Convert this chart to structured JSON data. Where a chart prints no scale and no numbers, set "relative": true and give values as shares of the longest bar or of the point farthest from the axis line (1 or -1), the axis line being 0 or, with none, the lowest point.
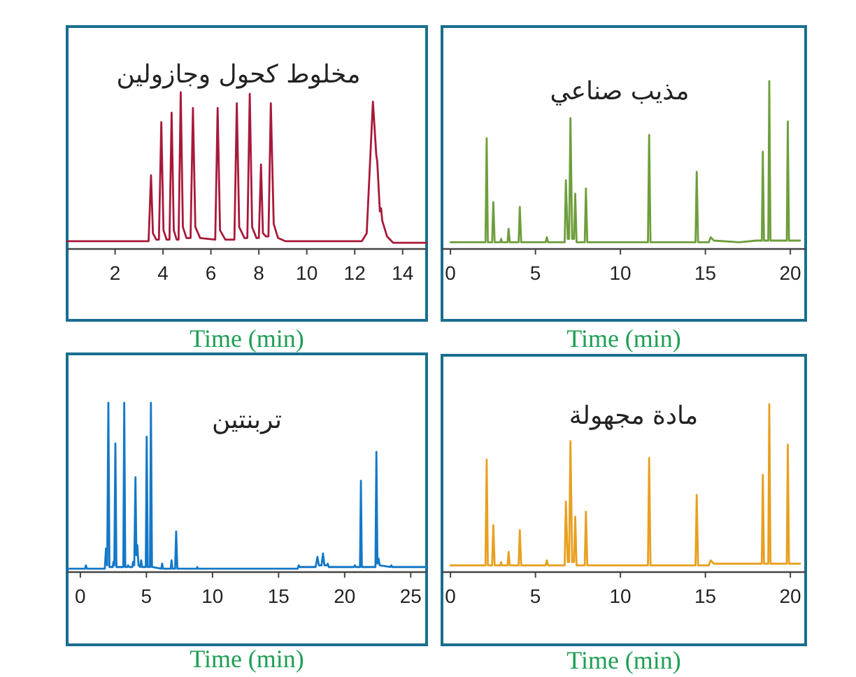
{
  "chart_data": [
    {
      "type": "line",
      "title": "مخلوط كحول وجازولين",
      "xlabel": "Time (min)",
      "relative": true,
      "color": "#a8193a",
      "xlim": [
        0,
        15
      ],
      "xticks": [
        2,
        4,
        6,
        8,
        10,
        12,
        14
      ],
      "x": [
        0,
        3.4,
        3.5,
        3.58,
        3.72,
        3.83,
        3.93,
        4.02,
        4.15,
        4.27,
        4.36,
        4.45,
        4.57,
        4.65,
        4.74,
        4.83,
        4.98,
        5.15,
        5.25,
        5.35,
        5.55,
        6.18,
        6.28,
        6.38,
        6.6,
        6.98,
        7.08,
        7.18,
        7.4,
        7.52,
        7.62,
        7.72,
        7.9,
        8.0,
        8.09,
        8.17,
        8.3,
        8.4,
        8.5,
        8.62,
        8.8,
        9.1,
        12.3,
        12.5,
        12.76,
        12.9,
        12.94,
        13.05,
        13.1,
        13.15,
        13.35,
        13.6,
        15
      ],
      "values": [
        0.05,
        0.05,
        0.47,
        0.1,
        0.06,
        0.06,
        0.81,
        0.12,
        0.06,
        0.06,
        0.87,
        0.12,
        0.06,
        0.06,
        1.0,
        0.14,
        0.07,
        0.07,
        0.9,
        0.14,
        0.07,
        0.06,
        0.9,
        0.12,
        0.06,
        0.06,
        0.93,
        0.14,
        0.07,
        0.07,
        0.99,
        0.14,
        0.07,
        0.07,
        0.54,
        0.1,
        0.08,
        0.08,
        0.93,
        0.16,
        0.07,
        0.05,
        0.05,
        0.1,
        0.94,
        0.6,
        0.56,
        0.24,
        0.26,
        0.18,
        0.08,
        0.04,
        0.04
      ]
    },
    {
      "type": "line",
      "title": "مذيب صناعي",
      "xlabel": "Time (min)",
      "relative": true,
      "color": "#6e9e3c",
      "xlim": [
        -0.5,
        20.9
      ],
      "xticks": [
        0,
        5,
        10,
        15,
        20
      ],
      "x": [
        0,
        2.06,
        2.13,
        2.2,
        2.45,
        2.52,
        2.6,
        2.93,
        2.98,
        3.03,
        3.36,
        3.42,
        3.49,
        4.01,
        4.08,
        4.16,
        5.6,
        5.67,
        5.74,
        6.72,
        6.79,
        6.9,
        6.98,
        7.06,
        7.16,
        7.27,
        7.34,
        7.42,
        7.9,
        7.97,
        8.05,
        11.62,
        11.69,
        11.77,
        14.42,
        14.49,
        14.57,
        15.2,
        15.31,
        15.5,
        17.0,
        18.0,
        18.32,
        18.38,
        18.45,
        18.7,
        18.76,
        18.83,
        19.79,
        19.85,
        19.92,
        20.57
      ],
      "values": [
        0.04,
        0.04,
        0.66,
        0.04,
        0.04,
        0.28,
        0.04,
        0.04,
        0.06,
        0.04,
        0.04,
        0.12,
        0.04,
        0.04,
        0.25,
        0.04,
        0.04,
        0.07,
        0.04,
        0.04,
        0.41,
        0.06,
        0.06,
        0.78,
        0.06,
        0.06,
        0.33,
        0.04,
        0.04,
        0.36,
        0.04,
        0.04,
        0.68,
        0.04,
        0.04,
        0.46,
        0.04,
        0.04,
        0.07,
        0.05,
        0.04,
        0.05,
        0.05,
        0.58,
        0.05,
        0.05,
        1.0,
        0.05,
        0.05,
        0.76,
        0.05,
        0.05
      ]
    },
    {
      "type": "line",
      "title": "تربنتين",
      "xlabel": "Time (min)",
      "relative": true,
      "color": "#1478c8",
      "xlim": [
        -1,
        26.2
      ],
      "xticks": [
        0,
        5,
        10,
        15,
        20,
        25
      ],
      "x": [
        -0.99,
        0.35,
        0.42,
        0.5,
        1.85,
        1.94,
        2.03,
        2.12,
        2.2,
        2.45,
        2.51,
        2.57,
        2.65,
        2.73,
        3.25,
        3.32,
        3.4,
        3.55,
        3.61,
        3.7,
        3.93,
        3.99,
        4.08,
        4.17,
        4.24,
        4.31,
        4.4,
        4.53,
        4.6,
        4.68,
        4.95,
        5.02,
        5.1,
        5.27,
        5.34,
        5.42,
        6.12,
        6.19,
        6.26,
        6.84,
        6.9,
        6.97,
        7.17,
        7.25,
        7.34,
        8.8,
        8.85,
        8.9,
        16.45,
        16.52,
        16.6,
        17.8,
        17.94,
        18.05,
        18.25,
        18.36,
        18.47,
        18.65,
        18.72,
        18.8,
        20.7,
        20.77,
        20.85,
        21.16,
        21.23,
        21.3,
        22.33,
        22.4,
        22.48,
        22.57,
        22.65,
        23.45,
        23.53,
        23.6,
        26.2
      ],
      "values": [
        0.02,
        0.02,
        0.04,
        0.02,
        0.02,
        0.14,
        0.04,
        1.0,
        0.03,
        0.03,
        0.06,
        0.04,
        0.76,
        0.03,
        0.03,
        1.0,
        0.03,
        0.03,
        0.04,
        0.03,
        0.03,
        0.06,
        0.04,
        0.56,
        0.1,
        0.16,
        0.04,
        0.03,
        0.07,
        0.03,
        0.03,
        0.8,
        0.03,
        0.03,
        1.0,
        0.03,
        0.02,
        0.05,
        0.02,
        0.02,
        0.07,
        0.02,
        0.02,
        0.24,
        0.02,
        0.02,
        0.03,
        0.02,
        0.02,
        0.04,
        0.03,
        0.03,
        0.09,
        0.04,
        0.04,
        0.11,
        0.04,
        0.04,
        0.05,
        0.03,
        0.03,
        0.04,
        0.03,
        0.03,
        0.54,
        0.03,
        0.03,
        0.71,
        0.05,
        0.08,
        0.04,
        0.03,
        0.04,
        0.03,
        0.03
      ]
    },
    {
      "type": "line",
      "title": "مادة مجهولة",
      "xlabel": "Time (min)",
      "relative": true,
      "color": "#e8a020",
      "xlim": [
        -0.5,
        20.9
      ],
      "xticks": [
        0,
        5,
        10,
        15,
        20
      ],
      "x": [
        0,
        2.06,
        2.13,
        2.2,
        2.45,
        2.52,
        2.6,
        2.93,
        2.98,
        3.03,
        3.36,
        3.42,
        3.49,
        4.01,
        4.08,
        4.16,
        5.6,
        5.67,
        5.74,
        6.72,
        6.79,
        6.9,
        6.98,
        7.06,
        7.16,
        7.27,
        7.34,
        7.42,
        7.9,
        7.97,
        8.05,
        11.62,
        11.69,
        11.77,
        14.42,
        14.49,
        14.57,
        15.2,
        15.31,
        15.5,
        17.0,
        18.0,
        18.32,
        18.38,
        18.45,
        18.7,
        18.76,
        18.83,
        19.79,
        19.85,
        19.92,
        20.57
      ],
      "values": [
        0.04,
        0.04,
        0.67,
        0.04,
        0.04,
        0.28,
        0.04,
        0.04,
        0.06,
        0.04,
        0.04,
        0.12,
        0.04,
        0.04,
        0.25,
        0.04,
        0.04,
        0.07,
        0.04,
        0.04,
        0.42,
        0.06,
        0.06,
        0.78,
        0.06,
        0.06,
        0.33,
        0.04,
        0.04,
        0.36,
        0.04,
        0.04,
        0.68,
        0.04,
        0.04,
        0.46,
        0.04,
        0.04,
        0.07,
        0.05,
        0.05,
        0.05,
        0.05,
        0.58,
        0.05,
        0.05,
        1.0,
        0.05,
        0.05,
        0.76,
        0.05,
        0.05
      ]
    }
  ]
}
